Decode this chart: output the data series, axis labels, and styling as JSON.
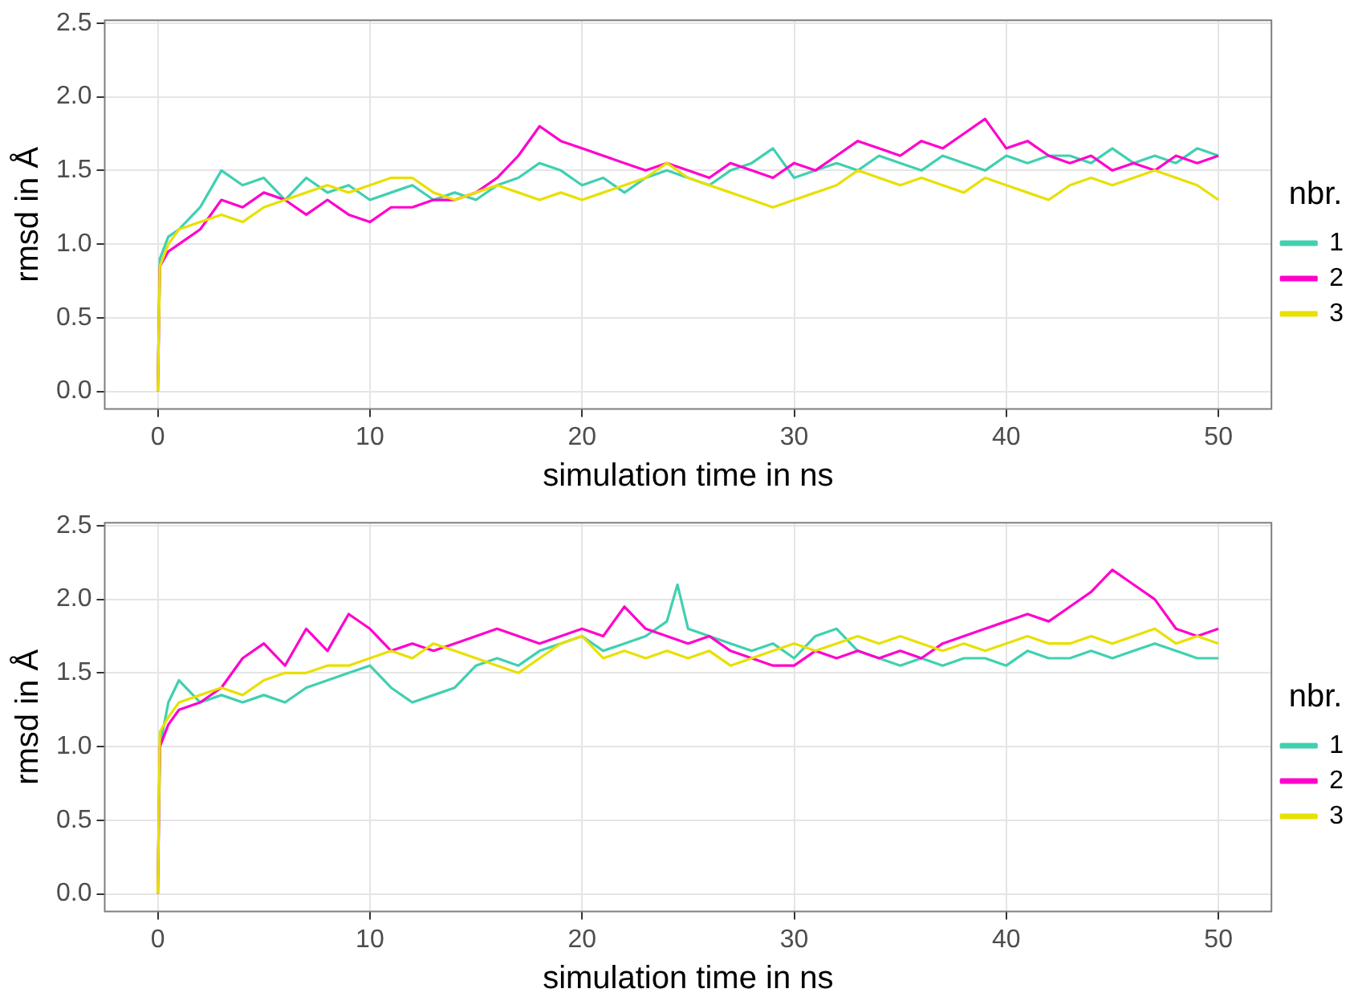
{
  "chart_data": [
    {
      "type": "line",
      "xlabel": "simulation time in ns",
      "ylabel": "rmsd in Å",
      "legend_title": "nbr.",
      "legend": "right",
      "grid": true,
      "marker": "none",
      "line_style": "solid",
      "xlim": [
        -2.5,
        52.5
      ],
      "ylim": [
        -0.12,
        2.52
      ],
      "xticks": [
        0,
        10,
        20,
        30,
        40,
        50
      ],
      "yticks": [
        {
          "value": 0,
          "label": "0.0"
        },
        {
          "value": 0.5,
          "label": "0.5"
        },
        {
          "value": 1,
          "label": "1.0"
        },
        {
          "value": 1.5,
          "label": "1.5"
        },
        {
          "value": 2,
          "label": "2.0"
        },
        {
          "value": 2.5,
          "label": "2.5"
        }
      ],
      "x": [
        0,
        0.1,
        0.5,
        1,
        2,
        3,
        4,
        5,
        6,
        7,
        8,
        9,
        10,
        11,
        12,
        13,
        14,
        15,
        16,
        17,
        18,
        19,
        20,
        21,
        22,
        23,
        24,
        25,
        26,
        27,
        28,
        29,
        30,
        31,
        32,
        33,
        34,
        35,
        36,
        37,
        38,
        39,
        40,
        41,
        42,
        43,
        44,
        45,
        46,
        47,
        48,
        49,
        50
      ],
      "series": [
        {
          "name": "1",
          "color": "#40d0b0",
          "values": [
            0,
            0.9,
            1.05,
            1.1,
            1.25,
            1.5,
            1.4,
            1.45,
            1.3,
            1.45,
            1.35,
            1.4,
            1.3,
            1.35,
            1.4,
            1.3,
            1.35,
            1.3,
            1.4,
            1.45,
            1.55,
            1.5,
            1.4,
            1.45,
            1.35,
            1.45,
            1.5,
            1.45,
            1.4,
            1.5,
            1.55,
            1.65,
            1.45,
            1.5,
            1.55,
            1.5,
            1.6,
            1.55,
            1.5,
            1.6,
            1.55,
            1.5,
            1.6,
            1.55,
            1.6,
            1.6,
            1.55,
            1.65,
            1.55,
            1.6,
            1.55,
            1.65,
            1.6
          ]
        },
        {
          "name": "2",
          "color": "#ff00cc",
          "values": [
            0,
            0.85,
            0.95,
            1.0,
            1.1,
            1.3,
            1.25,
            1.35,
            1.3,
            1.2,
            1.3,
            1.2,
            1.15,
            1.25,
            1.25,
            1.3,
            1.3,
            1.35,
            1.45,
            1.6,
            1.8,
            1.7,
            1.65,
            1.6,
            1.55,
            1.5,
            1.55,
            1.5,
            1.45,
            1.55,
            1.5,
            1.45,
            1.55,
            1.5,
            1.6,
            1.7,
            1.65,
            1.6,
            1.7,
            1.65,
            1.75,
            1.85,
            1.65,
            1.7,
            1.6,
            1.55,
            1.6,
            1.5,
            1.55,
            1.5,
            1.6,
            1.55,
            1.6
          ]
        },
        {
          "name": "3",
          "color": "#e8e000",
          "values": [
            0,
            0.85,
            1.0,
            1.1,
            1.15,
            1.2,
            1.15,
            1.25,
            1.3,
            1.35,
            1.4,
            1.35,
            1.4,
            1.45,
            1.45,
            1.35,
            1.3,
            1.35,
            1.4,
            1.35,
            1.3,
            1.35,
            1.3,
            1.35,
            1.4,
            1.45,
            1.55,
            1.45,
            1.4,
            1.35,
            1.3,
            1.25,
            1.3,
            1.35,
            1.4,
            1.5,
            1.45,
            1.4,
            1.45,
            1.4,
            1.35,
            1.45,
            1.4,
            1.35,
            1.3,
            1.4,
            1.45,
            1.4,
            1.45,
            1.5,
            1.45,
            1.4,
            1.3
          ]
        }
      ]
    },
    {
      "type": "line",
      "xlabel": "simulation time in ns",
      "ylabel": "rmsd in Å",
      "legend_title": "nbr.",
      "legend": "right",
      "grid": true,
      "marker": "none",
      "line_style": "solid",
      "xlim": [
        -2.5,
        52.5
      ],
      "ylim": [
        -0.12,
        2.52
      ],
      "xticks": [
        0,
        10,
        20,
        30,
        40,
        50
      ],
      "yticks": [
        {
          "value": 0,
          "label": "0.0"
        },
        {
          "value": 0.5,
          "label": "0.5"
        },
        {
          "value": 1,
          "label": "1.0"
        },
        {
          "value": 1.5,
          "label": "1.5"
        },
        {
          "value": 2,
          "label": "2.0"
        },
        {
          "value": 2.5,
          "label": "2.5"
        }
      ],
      "x": [
        0,
        0.1,
        0.5,
        1,
        2,
        3,
        4,
        5,
        6,
        7,
        8,
        9,
        10,
        11,
        12,
        13,
        14,
        15,
        16,
        17,
        18,
        19,
        20,
        21,
        22,
        23,
        24,
        25,
        26,
        27,
        28,
        29,
        30,
        31,
        32,
        33,
        34,
        35,
        36,
        37,
        38,
        39,
        40,
        41,
        42,
        43,
        44,
        45,
        46,
        47,
        48,
        49,
        50
      ],
      "series": [
        {
          "name": "1",
          "color": "#40d0b0",
          "x": [
            0,
            0.1,
            0.5,
            1,
            2,
            3,
            4,
            5,
            6,
            7,
            8,
            9,
            10,
            11,
            12,
            13,
            14,
            15,
            16,
            17,
            18,
            19,
            20,
            21,
            22,
            23,
            24,
            24.5,
            25,
            26,
            27,
            28,
            29,
            30,
            31,
            32,
            33,
            34,
            35,
            36,
            37,
            38,
            39,
            40,
            41,
            42,
            43,
            44,
            45,
            46,
            47,
            48,
            49,
            50
          ],
          "values": [
            0,
            1.0,
            1.3,
            1.45,
            1.3,
            1.35,
            1.3,
            1.35,
            1.3,
            1.4,
            1.45,
            1.5,
            1.55,
            1.4,
            1.3,
            1.35,
            1.4,
            1.55,
            1.6,
            1.55,
            1.65,
            1.7,
            1.75,
            1.65,
            1.7,
            1.75,
            1.85,
            2.1,
            1.8,
            1.75,
            1.7,
            1.65,
            1.7,
            1.6,
            1.75,
            1.8,
            1.65,
            1.6,
            1.55,
            1.6,
            1.55,
            1.6,
            1.6,
            1.55,
            1.65,
            1.6,
            1.6,
            1.65,
            1.6,
            1.65,
            1.7,
            1.65,
            1.6,
            1.6
          ]
        },
        {
          "name": "2",
          "color": "#ff00cc",
          "values": [
            0,
            1.0,
            1.15,
            1.25,
            1.3,
            1.4,
            1.6,
            1.7,
            1.55,
            1.8,
            1.65,
            1.9,
            1.8,
            1.65,
            1.7,
            1.65,
            1.7,
            1.75,
            1.8,
            1.75,
            1.7,
            1.75,
            1.8,
            1.75,
            1.95,
            1.8,
            1.75,
            1.7,
            1.75,
            1.65,
            1.6,
            1.55,
            1.55,
            1.65,
            1.6,
            1.65,
            1.6,
            1.65,
            1.6,
            1.7,
            1.75,
            1.8,
            1.85,
            1.9,
            1.85,
            1.95,
            2.05,
            2.2,
            2.1,
            2.0,
            1.8,
            1.75,
            1.8
          ]
        },
        {
          "name": "3",
          "color": "#e8e000",
          "values": [
            0,
            1.1,
            1.2,
            1.3,
            1.35,
            1.4,
            1.35,
            1.45,
            1.5,
            1.5,
            1.55,
            1.55,
            1.6,
            1.65,
            1.6,
            1.7,
            1.65,
            1.6,
            1.55,
            1.5,
            1.6,
            1.7,
            1.75,
            1.6,
            1.65,
            1.6,
            1.65,
            1.6,
            1.65,
            1.55,
            1.6,
            1.65,
            1.7,
            1.65,
            1.7,
            1.75,
            1.7,
            1.75,
            1.7,
            1.65,
            1.7,
            1.65,
            1.7,
            1.75,
            1.7,
            1.7,
            1.75,
            1.7,
            1.75,
            1.8,
            1.7,
            1.75,
            1.7
          ]
        }
      ]
    }
  ]
}
